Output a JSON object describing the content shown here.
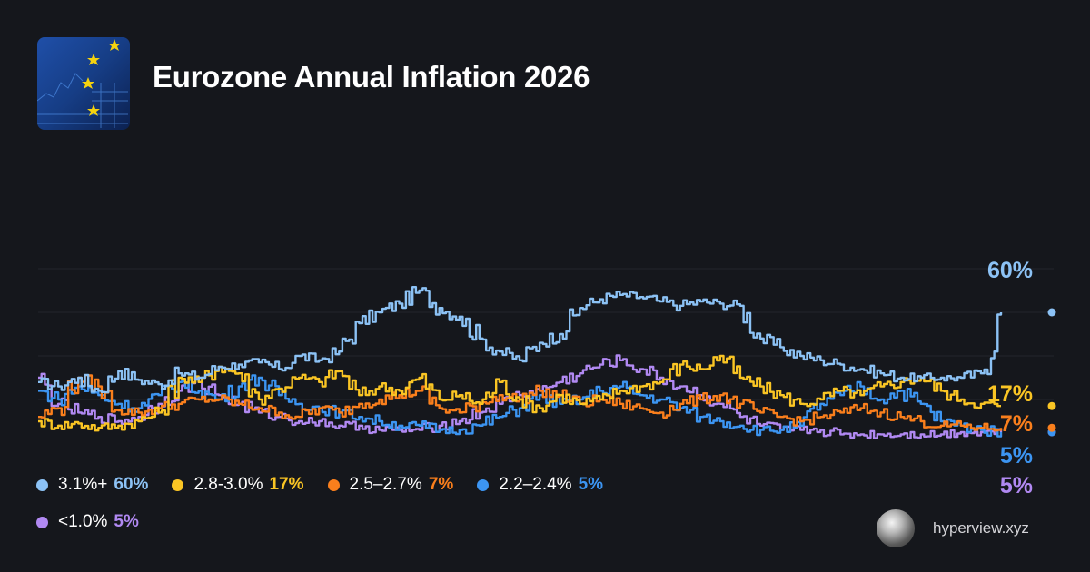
{
  "title": "Eurozone Annual Inflation 2026",
  "brand": {
    "name": "hyperview.xyz",
    "logo_icon": "sphere-logo-icon"
  },
  "thumbnail": {
    "icon": "eu-flag-chart-thumbnail-icon"
  },
  "legend": [
    {
      "label": "3.1%+",
      "value": "60%",
      "color": "#8cc2f5"
    },
    {
      "label": "2.8-3.0%",
      "value": "17%",
      "color": "#fac524"
    },
    {
      "label": "2.5–2.7%",
      "value": "7%",
      "color": "#fa7f1c"
    },
    {
      "label": "2.2–2.4%",
      "value": "5%",
      "color": "#3c95f2"
    },
    {
      "label": "<1.0%",
      "value": "5%",
      "color": "#b189f2"
    }
  ],
  "end_labels": [
    "60%",
    "17%",
    "7%",
    "5%",
    "5%"
  ],
  "chart_data": {
    "type": "line",
    "title": "Eurozone Annual Inflation 2026",
    "xlabel": "",
    "ylabel": "",
    "ylim": [
      0,
      100
    ],
    "grid": true,
    "legend_position": "bottom-left",
    "series": [
      {
        "name": "3.1%+",
        "color": "#8cc2f5",
        "values": [
          28,
          26,
          30,
          24,
          33,
          29,
          27,
          32,
          30,
          35,
          36,
          37,
          34,
          40,
          38,
          42,
          55,
          60,
          64,
          70,
          62,
          58,
          48,
          42,
          38,
          46,
          50,
          62,
          66,
          68,
          67,
          65,
          63,
          65,
          64,
          63,
          48,
          44,
          40,
          38,
          36,
          34,
          32,
          30,
          30,
          30,
          30,
          32,
          60
        ]
      },
      {
        "name": "2.8-3.0%",
        "color": "#fac524",
        "values": [
          10,
          8,
          9,
          7,
          8,
          10,
          14,
          30,
          28,
          35,
          32,
          20,
          25,
          30,
          28,
          33,
          22,
          26,
          24,
          30,
          20,
          22,
          18,
          28,
          20,
          16,
          22,
          18,
          20,
          24,
          26,
          28,
          36,
          34,
          40,
          30,
          26,
          22,
          18,
          20,
          24,
          22,
          26,
          28,
          30,
          24,
          20,
          18,
          17
        ]
      },
      {
        "name": "2.5–2.7%",
        "color": "#fa7f1c",
        "values": [
          12,
          16,
          30,
          26,
          15,
          14,
          16,
          18,
          20,
          20,
          18,
          16,
          14,
          12,
          16,
          14,
          18,
          20,
          22,
          24,
          16,
          14,
          18,
          22,
          20,
          24,
          22,
          18,
          20,
          18,
          16,
          14,
          18,
          20,
          22,
          18,
          14,
          12,
          10,
          12,
          14,
          16,
          14,
          12,
          10,
          8,
          8,
          7,
          7
        ]
      },
      {
        "name": "2.2–2.4%",
        "color": "#3c95f2",
        "values": [
          24,
          20,
          26,
          22,
          18,
          16,
          22,
          28,
          24,
          20,
          26,
          30,
          22,
          18,
          16,
          14,
          12,
          10,
          8,
          8,
          6,
          6,
          8,
          12,
          16,
          22,
          18,
          20,
          24,
          26,
          22,
          20,
          16,
          12,
          10,
          8,
          6,
          6,
          8,
          18,
          22,
          26,
          20,
          24,
          18,
          10,
          8,
          6,
          5
        ]
      },
      {
        "name": "<1.0%",
        "color": "#b189f2",
        "values": [
          30,
          18,
          14,
          12,
          10,
          12,
          18,
          24,
          28,
          22,
          18,
          14,
          12,
          10,
          10,
          8,
          8,
          6,
          6,
          6,
          8,
          10,
          14,
          18,
          22,
          24,
          28,
          32,
          36,
          38,
          34,
          30,
          26,
          22,
          18,
          12,
          8,
          6,
          6,
          6,
          4,
          4,
          4,
          4,
          4,
          4,
          5,
          5,
          5
        ]
      }
    ]
  }
}
